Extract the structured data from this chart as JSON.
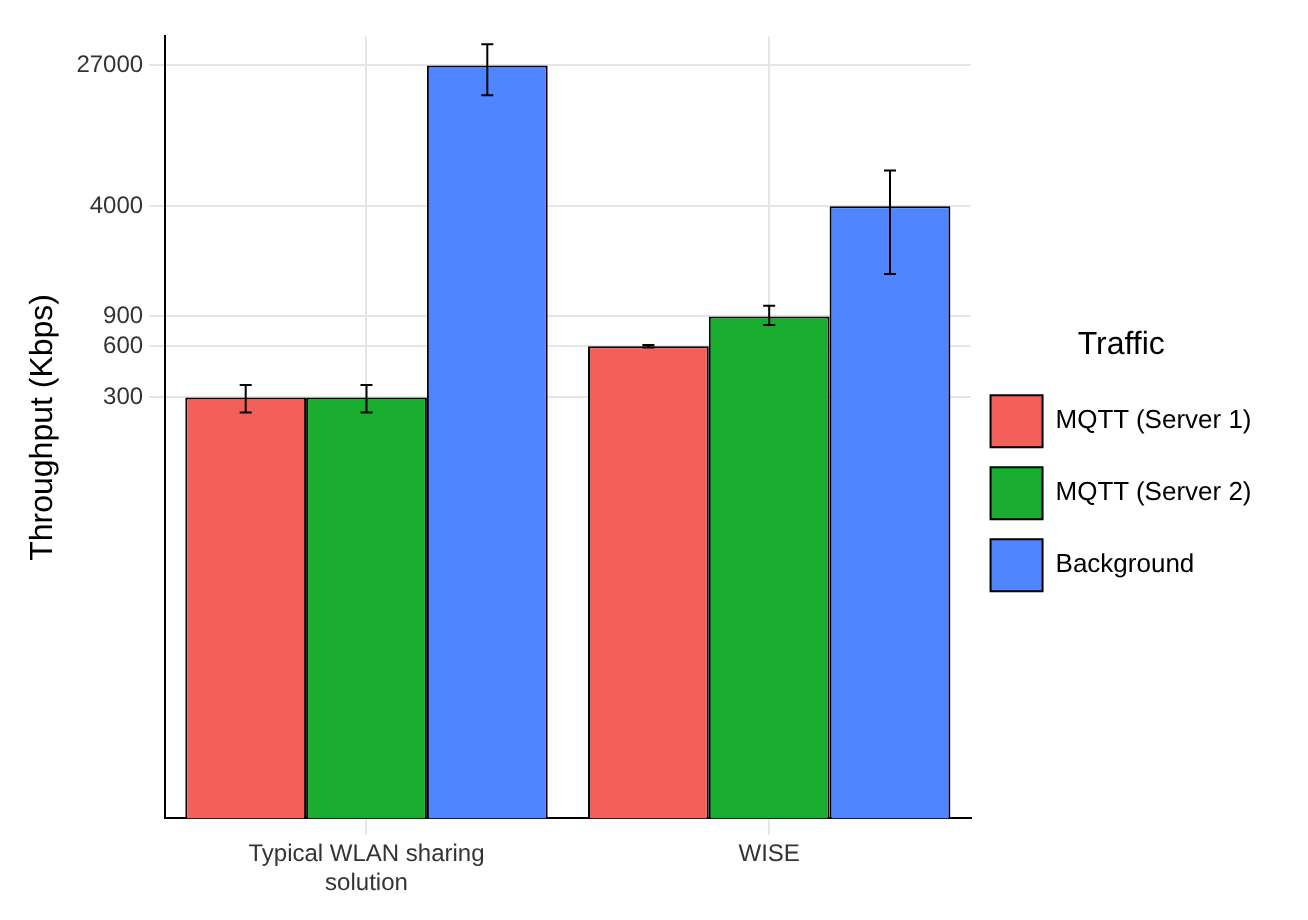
{
  "chart_data": {
    "type": "bar",
    "ylabel": "Throughput (Kbps)",
    "legend_title": "Traffic",
    "categories": [
      "Typical WLAN sharing solution",
      "WISE"
    ],
    "series": [
      {
        "name": "MQTT (Server 1)",
        "color": "#f35f5a",
        "values": [
          300,
          600
        ],
        "errors": [
          [
            245,
            355
          ],
          [
            590,
            610
          ]
        ]
      },
      {
        "name": "MQTT (Server 2)",
        "color": "#19ad2f",
        "values": [
          300,
          900
        ],
        "errors": [
          [
            245,
            355
          ],
          [
            800,
            1040
          ]
        ]
      },
      {
        "name": "Background",
        "color": "#4f86ff",
        "values": [
          27000,
          4000
        ],
        "errors": [
          [
            18000,
            36000
          ],
          [
            1600,
            6500
          ]
        ]
      }
    ],
    "log": "y",
    "ylim": [
      1,
      40000
    ],
    "yticks": [
      300,
      600,
      900,
      4000,
      27000
    ],
    "grid": true,
    "legend": "right"
  }
}
